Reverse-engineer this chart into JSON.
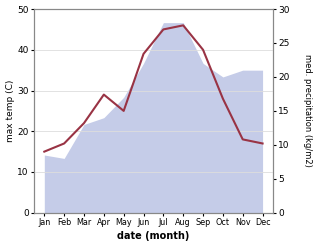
{
  "months": [
    "Jan",
    "Feb",
    "Mar",
    "Apr",
    "May",
    "Jun",
    "Jul",
    "Aug",
    "Sep",
    "Oct",
    "Nov",
    "Dec"
  ],
  "temp": [
    15,
    17,
    22,
    29,
    25,
    39,
    45,
    46,
    40,
    28,
    18,
    17
  ],
  "precip": [
    8.5,
    8.0,
    13.0,
    14.0,
    17.0,
    22.0,
    28.0,
    28.0,
    22.0,
    20.0,
    21.0,
    21.0
  ],
  "temp_color": "#993344",
  "precip_fill_color": "#c5cce8",
  "precip_line_color": "#c5cce8",
  "ylim_temp": [
    0,
    50
  ],
  "ylim_precip": [
    0,
    30
  ],
  "xlabel": "date (month)",
  "ylabel_left": "max temp (C)",
  "ylabel_right": "med. precipitation (kg/m2)",
  "bg_color": "#ffffff",
  "grid_color": "#dddddd"
}
